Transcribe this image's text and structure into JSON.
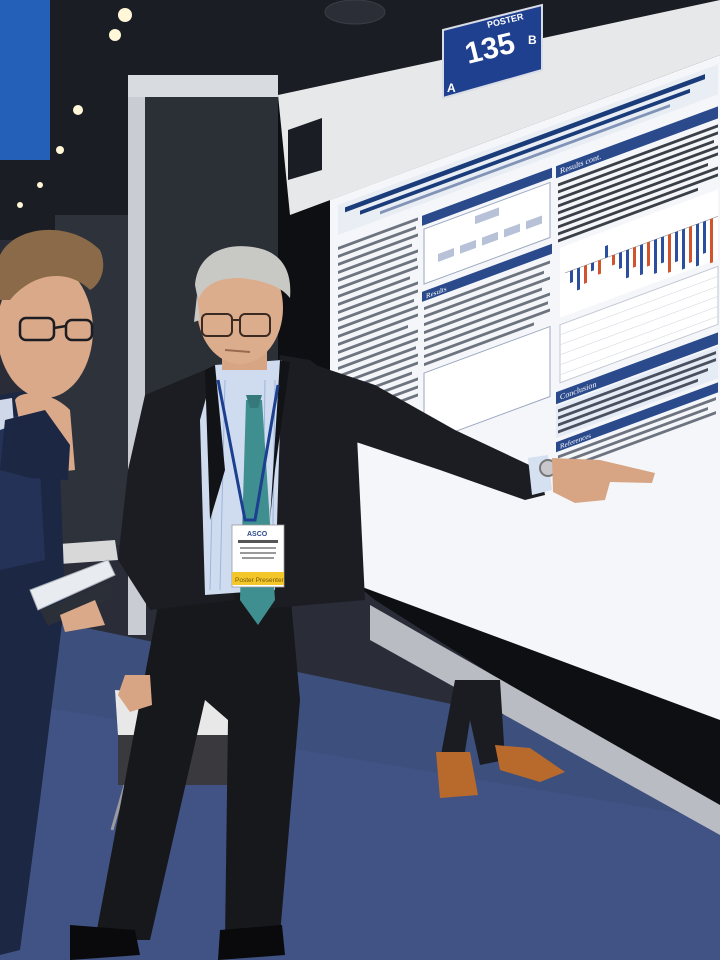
{
  "poster_board": {
    "label": "POSTER",
    "number": "135",
    "side_left": "A",
    "side_right": "B"
  },
  "poster": {
    "section_results_cont": "Results cont.",
    "section_results": "Results",
    "section_conclusion": "Conclusion",
    "section_references": "References"
  },
  "badge": {
    "logo": "ASCO",
    "ribbon": "Poster Presenter"
  },
  "colors": {
    "carpet": "#3d4f7c",
    "poster_accent": "#2a4a8c",
    "board_sign": "#1f3f8f",
    "chart_blue": "#2b4f9e",
    "chart_red": "#d2542c"
  }
}
